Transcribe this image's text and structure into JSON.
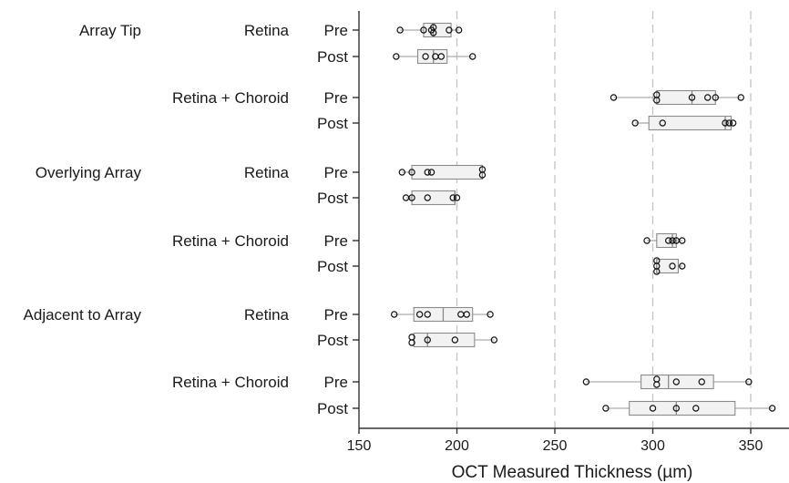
{
  "chart_data": {
    "type": "box",
    "xlabel": "OCT Measured Thickness (µm)",
    "xlim": [
      150,
      360
    ],
    "xticks": [
      150,
      200,
      250,
      300,
      350
    ],
    "grid": "vertical dashed at 200, 250, 300, 350",
    "regions": [
      "Array Tip",
      "Overlying Array",
      "Adjacent to Array"
    ],
    "tissues": [
      "Retina",
      "Retina + Choroid"
    ],
    "timepoints": [
      "Pre",
      "Post"
    ],
    "rows": [
      {
        "region": "Array Tip",
        "tissue": "Retina",
        "time": "Pre",
        "min": 171,
        "q1": 183,
        "median": 188,
        "q3": 197,
        "max": 201,
        "points": [
          171,
          183,
          187,
          188,
          188,
          196,
          201
        ]
      },
      {
        "region": "Array Tip",
        "tissue": "Retina",
        "time": "Post",
        "min": 169,
        "q1": 180,
        "median": 188,
        "q3": 195,
        "max": 208,
        "points": [
          169,
          184,
          189,
          192,
          208
        ]
      },
      {
        "region": "Array Tip",
        "tissue": "Retina + Choroid",
        "time": "Pre",
        "min": 280,
        "q1": 302,
        "median": 320,
        "q3": 332,
        "max": 345,
        "points": [
          280,
          302,
          302,
          320,
          328,
          332,
          345
        ]
      },
      {
        "region": "Array Tip",
        "tissue": "Retina + Choroid",
        "time": "Post",
        "min": 291,
        "q1": 298,
        "median": 337,
        "q3": 340,
        "max": 341,
        "points": [
          291,
          305,
          337,
          339,
          341
        ]
      },
      {
        "region": "Overlying Array",
        "tissue": "Retina",
        "time": "Pre",
        "min": 172,
        "q1": 177,
        "median": 213,
        "q3": 213,
        "max": 213,
        "points": [
          172,
          177,
          185,
          187,
          213,
          213
        ]
      },
      {
        "region": "Overlying Array",
        "tissue": "Retina",
        "time": "Post",
        "min": 174,
        "q1": 177,
        "median": 199,
        "q3": 199,
        "max": 200,
        "points": [
          174,
          177,
          185,
          198,
          200
        ]
      },
      {
        "region": "Overlying Array",
        "tissue": "Retina + Choroid",
        "time": "Pre",
        "min": 297,
        "q1": 302,
        "median": 310,
        "q3": 312,
        "max": 315,
        "points": [
          297,
          308,
          310,
          312,
          315
        ]
      },
      {
        "region": "Overlying Array",
        "tissue": "Retina + Choroid",
        "time": "Post",
        "min": 302,
        "q1": 302,
        "median": 302,
        "q3": 313,
        "max": 315,
        "points": [
          302,
          302,
          302,
          310,
          315
        ]
      },
      {
        "region": "Adjacent to Array",
        "tissue": "Retina",
        "time": "Pre",
        "min": 168,
        "q1": 178,
        "median": 193,
        "q3": 208,
        "max": 217,
        "points": [
          168,
          181,
          185,
          202,
          205,
          217
        ]
      },
      {
        "region": "Adjacent to Array",
        "tissue": "Retina",
        "time": "Post",
        "min": 177,
        "q1": 178,
        "median": 185,
        "q3": 209,
        "max": 219,
        "points": [
          177,
          177,
          185,
          199,
          219
        ]
      },
      {
        "region": "Adjacent to Array",
        "tissue": "Retina + Choroid",
        "time": "Pre",
        "min": 266,
        "q1": 294,
        "median": 308,
        "q3": 331,
        "max": 349,
        "points": [
          266,
          302,
          302,
          312,
          325,
          349
        ]
      },
      {
        "region": "Adjacent to Array",
        "tissue": "Retina + Choroid",
        "time": "Post",
        "min": 276,
        "q1": 288,
        "median": 312,
        "q3": 342,
        "max": 361,
        "points": [
          276,
          300,
          312,
          322,
          361
        ]
      }
    ]
  }
}
